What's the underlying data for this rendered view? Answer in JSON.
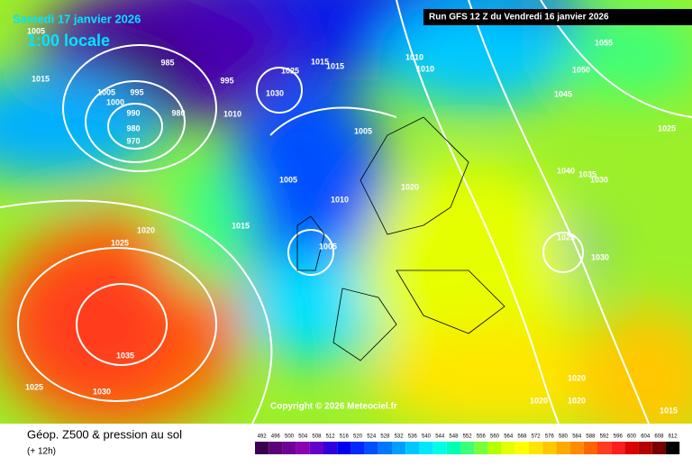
{
  "header": {
    "date": "Samedi 17 janvier 2026",
    "time": "1:00 locale",
    "run": "Run GFS 12 Z du Vendredi 16 janvier 2026"
  },
  "copyright": "Copyright © 2026 Meteociel.fr",
  "footer": {
    "title": "Géop. Z500 & pression au sol",
    "subtitle": "(+ 12h)"
  },
  "isobar_labels": [
    1005,
    1015,
    1005,
    995,
    1000,
    990,
    985,
    980,
    980,
    970,
    995,
    1010,
    1025,
    1030,
    1015,
    1015,
    1010,
    1010,
    1005,
    1005,
    1010,
    1020,
    1005,
    1015,
    1020,
    1025,
    1035,
    1025,
    1030,
    1055,
    1050,
    1045,
    1040,
    1035,
    1030,
    1025,
    1030,
    1025,
    1020,
    1020,
    1020,
    1015
  ],
  "legend": {
    "ticks": [
      492,
      496,
      500,
      504,
      508,
      512,
      516,
      520,
      524,
      528,
      532,
      536,
      540,
      544,
      548,
      552,
      556,
      560,
      564,
      568,
      572,
      576,
      580,
      584,
      588,
      592,
      596,
      600,
      604,
      608,
      612
    ],
    "colors": [
      "#3c0050",
      "#5a0078",
      "#6e0096",
      "#8c00b4",
      "#6400c8",
      "#3200dc",
      "#0000f0",
      "#0028ff",
      "#0050ff",
      "#0078ff",
      "#00a0ff",
      "#00c8ff",
      "#00e6ff",
      "#00ffe6",
      "#00ffb4",
      "#3cff78",
      "#78ff3c",
      "#b4ff00",
      "#e6ff00",
      "#ffff00",
      "#ffe600",
      "#ffc800",
      "#ffaa00",
      "#ff8c00",
      "#ff6400",
      "#ff3c1e",
      "#ff1e1e",
      "#dc0000",
      "#b40000",
      "#780000",
      "#000000"
    ]
  }
}
